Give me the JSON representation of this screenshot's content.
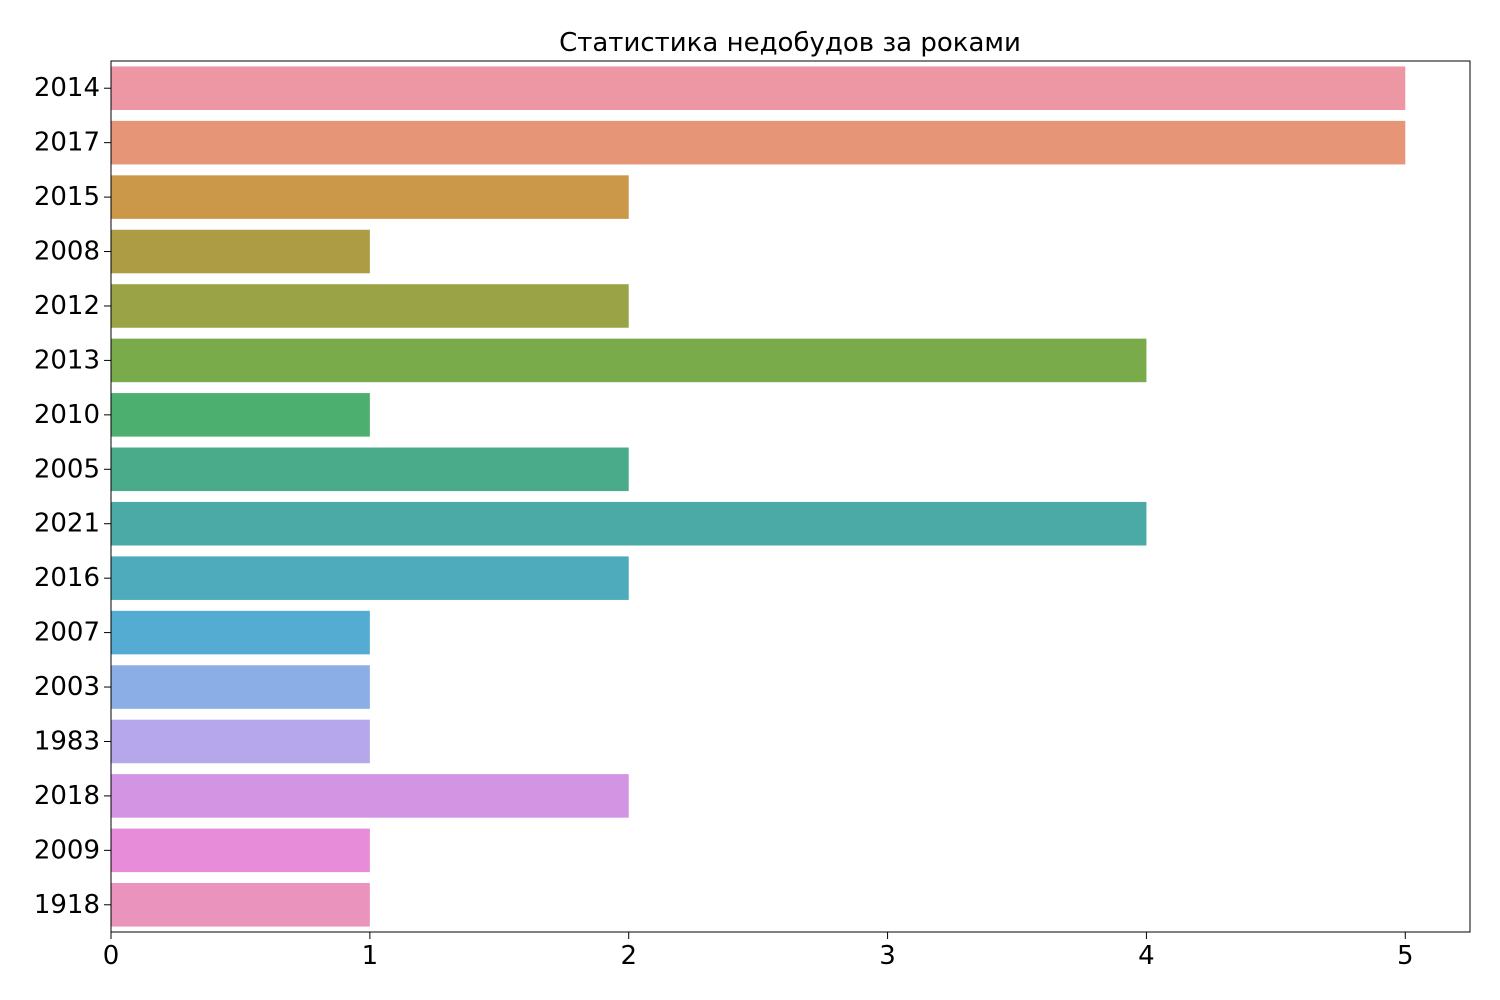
{
  "chart_data": {
    "type": "bar",
    "orientation": "horizontal",
    "title": "Статистика недобудов за роками",
    "xlabel": "",
    "ylabel": "",
    "categories": [
      "2014",
      "2017",
      "2015",
      "2008",
      "2012",
      "2013",
      "2010",
      "2005",
      "2021",
      "2016",
      "2007",
      "2003",
      "1983",
      "2018",
      "2009",
      "1918"
    ],
    "values": [
      5,
      5,
      2,
      1,
      2,
      4,
      1,
      2,
      4,
      2,
      1,
      1,
      1,
      2,
      1,
      1
    ],
    "colors": [
      "#ec97a3",
      "#e69577",
      "#cb9749",
      "#ae9c45",
      "#9ba347",
      "#7aab4b",
      "#4caf70",
      "#4aab8b",
      "#4baaa5",
      "#4eabbb",
      "#55acd2",
      "#8aaee5",
      "#b6a7ec",
      "#d494e4",
      "#e68cd8",
      "#ea93bd"
    ],
    "xlim": [
      0,
      5.25
    ],
    "xticks": [
      0,
      1,
      2,
      3,
      4,
      5
    ],
    "grid": false,
    "legend": "none"
  }
}
